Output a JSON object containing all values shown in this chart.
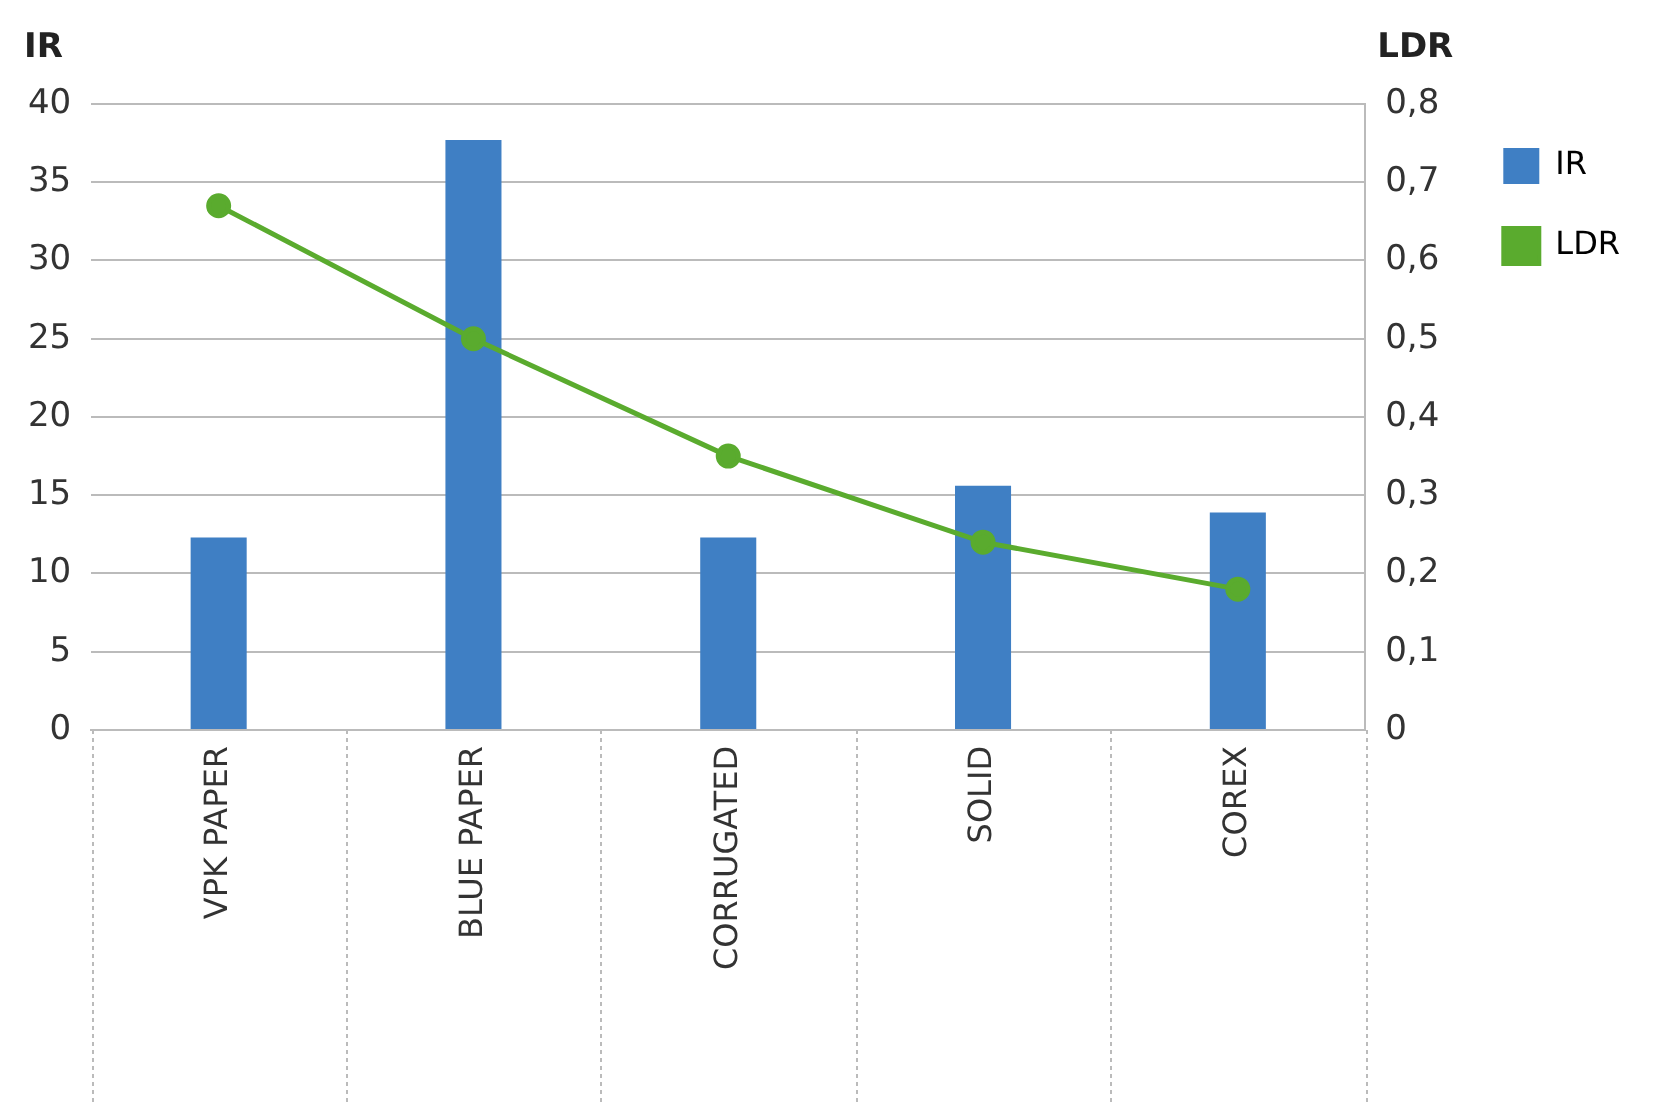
{
  "chart_data": {
    "type": "bar",
    "categories": [
      "VPK PAPER",
      "BLUE PAPER",
      "CORRUGATED",
      "SOLID",
      "COREX"
    ],
    "series": [
      {
        "name": "IR",
        "color": "#3f7fc4",
        "values": [
          12.3,
          37.7,
          12.3,
          15.6,
          13.9
        ]
      },
      {
        "name": "LDR",
        "type": "line",
        "axis": "y2",
        "color": "#5aab2e",
        "marker": "circle",
        "values": [
          0.67,
          0.5,
          0.35,
          0.24,
          0.18
        ]
      }
    ],
    "ylabel": "IR",
    "y2label": "LDR",
    "ylim": [
      0,
      40
    ],
    "yticks": [
      0,
      5,
      10,
      15,
      20,
      25,
      30,
      35,
      40
    ],
    "y2lim": [
      0,
      0.8
    ],
    "y2ticks": [
      {
        "value": 0,
        "label": "0"
      },
      {
        "value": 0.1,
        "label": "0,1"
      },
      {
        "value": 0.2,
        "label": "0,2"
      },
      {
        "value": 0.3,
        "label": "0,3"
      },
      {
        "value": 0.4,
        "label": "0,4"
      },
      {
        "value": 0.5,
        "label": "0,5"
      },
      {
        "value": 0.6,
        "label": "0,6"
      },
      {
        "value": 0.7,
        "label": "0,7"
      },
      {
        "value": 0.8,
        "label": "0,8"
      }
    ],
    "grid": "y",
    "legend": "top right"
  }
}
